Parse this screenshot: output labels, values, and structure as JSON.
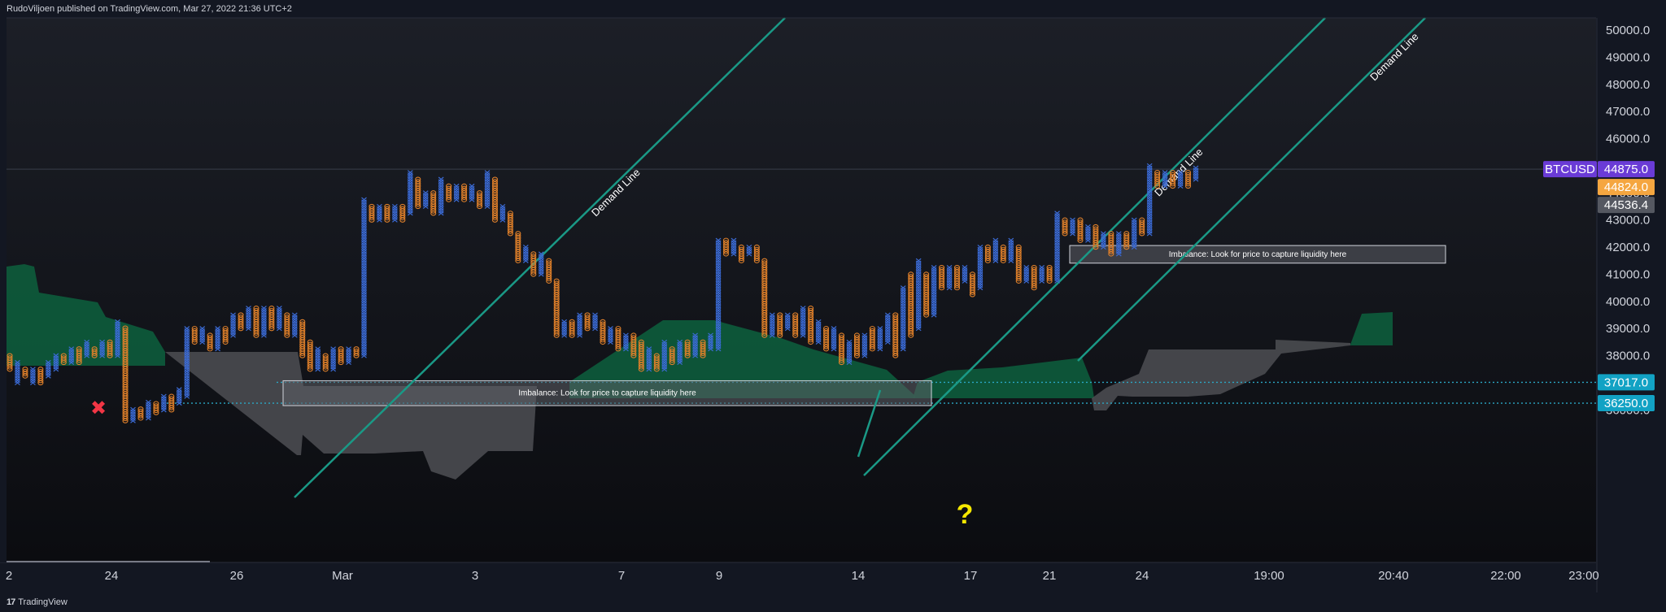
{
  "header": {
    "published": "RudoViljoen published on TradingView.com, Mar 27, 2022 21:36 UTC+2"
  },
  "footer": {
    "brand": "TradingView",
    "logo": "17"
  },
  "colors": {
    "background": "#131722",
    "x_color": "#3b6bd6",
    "o_color": "#e0802a",
    "cloud_green": "#0d5c3c",
    "cloud_gray": "#4a4b50",
    "demand_line": "#1a9986",
    "dotted": "#2ba6c4",
    "symbol_badge": "#6a3bd6",
    "last_badge": "#f5a640",
    "prev_badge": "#555861",
    "level_badge": "#12a2c4",
    "cross": "#f23645",
    "question": "#f5e800"
  },
  "chart_data": {
    "type": "point-and-figure",
    "symbol": "BTCUSD",
    "ylim": [
      35600,
      50500
    ],
    "y_ticks": [
      "50000.0",
      "49000.0",
      "48000.0",
      "47000.0",
      "46000.0",
      "45000.0",
      "44000.0",
      "43000.0",
      "42000.0",
      "41000.0",
      "40000.0",
      "39000.0",
      "38000.0",
      "37000.0",
      "36000.0"
    ],
    "x_ticks": [
      "2",
      "24",
      "26",
      "Mar",
      "3",
      "7",
      "9",
      "14",
      "17",
      "21",
      "24",
      "19:00",
      "20:40",
      "22:00",
      "23:00"
    ],
    "price_badges": [
      {
        "label": "BTCUSD",
        "role": "symbol",
        "value": 44875.0
      },
      {
        "label": "44875.0",
        "role": "symbol-value",
        "value": 44875.0
      },
      {
        "label": "44824.0",
        "role": "last",
        "value": 44824.0
      },
      {
        "label": "44536.4",
        "role": "prev",
        "value": 44536.4
      },
      {
        "label": "37017.0",
        "role": "level",
        "value": 37017.0
      },
      {
        "label": "36250.0",
        "role": "level",
        "value": 36250.0
      }
    ],
    "horizontal_levels": [
      37017.0,
      36250.0,
      44875.0
    ],
    "demand_lines": [
      {
        "label": "Demand Line"
      },
      {
        "label": "Demand Line"
      },
      {
        "label": "Demand Line"
      },
      {
        "label": ""
      }
    ],
    "annotations": [
      {
        "label": "Imbalance: Look for price to capture liquidity here",
        "low": 36250,
        "high": 37017
      },
      {
        "label": "Imbalance: Look for price to capture liquidity here",
        "low": 41500,
        "high": 42000
      }
    ],
    "markers": {
      "cross": "✖",
      "question": "?"
    },
    "columns": [
      {
        "t": "O",
        "lo": 37500,
        "hi": 38000
      },
      {
        "t": "X",
        "lo": 37000,
        "hi": 37750
      },
      {
        "t": "O",
        "lo": 37250,
        "hi": 37500
      },
      {
        "t": "X",
        "lo": 37000,
        "hi": 37500
      },
      {
        "t": "O",
        "lo": 37000,
        "hi": 37500
      },
      {
        "t": "X",
        "lo": 37250,
        "hi": 37750
      },
      {
        "t": "X",
        "lo": 37500,
        "hi": 38000
      },
      {
        "t": "O",
        "lo": 37750,
        "hi": 38000
      },
      {
        "t": "X",
        "lo": 37750,
        "hi": 38250
      },
      {
        "t": "O",
        "lo": 37750,
        "hi": 38250
      },
      {
        "t": "X",
        "lo": 38000,
        "hi": 38500
      },
      {
        "t": "O",
        "lo": 38000,
        "hi": 38250
      },
      {
        "t": "X",
        "lo": 38000,
        "hi": 38500
      },
      {
        "t": "O",
        "lo": 38000,
        "hi": 38500
      },
      {
        "t": "X",
        "lo": 38000,
        "hi": 39250
      },
      {
        "t": "O",
        "lo": 35600,
        "hi": 39000
      },
      {
        "t": "X",
        "lo": 35600,
        "hi": 36000
      },
      {
        "t": "O",
        "lo": 35700,
        "hi": 36000
      },
      {
        "t": "X",
        "lo": 35700,
        "hi": 36250
      },
      {
        "t": "O",
        "lo": 35900,
        "hi": 36250
      },
      {
        "t": "X",
        "lo": 36000,
        "hi": 36500
      },
      {
        "t": "O",
        "lo": 36000,
        "hi": 36500
      },
      {
        "t": "X",
        "lo": 36250,
        "hi": 36750
      },
      {
        "t": "X",
        "lo": 36500,
        "hi": 39000
      },
      {
        "t": "O",
        "lo": 38500,
        "hi": 39000
      },
      {
        "t": "X",
        "lo": 38500,
        "hi": 39000
      },
      {
        "t": "O",
        "lo": 38250,
        "hi": 38750
      },
      {
        "t": "X",
        "lo": 38250,
        "hi": 39000
      },
      {
        "t": "O",
        "lo": 38500,
        "hi": 39000
      },
      {
        "t": "X",
        "lo": 38750,
        "hi": 39500
      },
      {
        "t": "O",
        "lo": 39000,
        "hi": 39500
      },
      {
        "t": "X",
        "lo": 39000,
        "hi": 39750
      },
      {
        "t": "O",
        "lo": 38750,
        "hi": 39750
      },
      {
        "t": "X",
        "lo": 38750,
        "hi": 39750
      },
      {
        "t": "O",
        "lo": 39000,
        "hi": 39750
      },
      {
        "t": "X",
        "lo": 39000,
        "hi": 39750
      },
      {
        "t": "O",
        "lo": 38750,
        "hi": 39500
      },
      {
        "t": "X",
        "lo": 38750,
        "hi": 39500
      },
      {
        "t": "O",
        "lo": 38000,
        "hi": 39250
      },
      {
        "t": "O",
        "lo": 37500,
        "hi": 38500
      },
      {
        "t": "X",
        "lo": 37500,
        "hi": 38250
      },
      {
        "t": "O",
        "lo": 37500,
        "hi": 38000
      },
      {
        "t": "X",
        "lo": 37500,
        "hi": 38250
      },
      {
        "t": "O",
        "lo": 37750,
        "hi": 38250
      },
      {
        "t": "X",
        "lo": 37750,
        "hi": 38250
      },
      {
        "t": "O",
        "lo": 38000,
        "hi": 38250
      },
      {
        "t": "X",
        "lo": 38000,
        "hi": 43750
      },
      {
        "t": "O",
        "lo": 43000,
        "hi": 43500
      },
      {
        "t": "X",
        "lo": 43000,
        "hi": 43500
      },
      {
        "t": "O",
        "lo": 43000,
        "hi": 43500
      },
      {
        "t": "X",
        "lo": 43000,
        "hi": 43500
      },
      {
        "t": "O",
        "lo": 43000,
        "hi": 43500
      },
      {
        "t": "X",
        "lo": 43250,
        "hi": 44750
      },
      {
        "t": "O",
        "lo": 43500,
        "hi": 44500
      },
      {
        "t": "X",
        "lo": 43500,
        "hi": 44000
      },
      {
        "t": "O",
        "lo": 43250,
        "hi": 44000
      },
      {
        "t": "X",
        "lo": 43250,
        "hi": 44500
      },
      {
        "t": "O",
        "lo": 43750,
        "hi": 44250
      },
      {
        "t": "X",
        "lo": 43750,
        "hi": 44250
      },
      {
        "t": "O",
        "lo": 43750,
        "hi": 44250
      },
      {
        "t": "X",
        "lo": 43750,
        "hi": 44250
      },
      {
        "t": "O",
        "lo": 43500,
        "hi": 44000
      },
      {
        "t": "X",
        "lo": 43500,
        "hi": 44750
      },
      {
        "t": "O",
        "lo": 43000,
        "hi": 44500
      },
      {
        "t": "X",
        "lo": 43000,
        "hi": 43500
      },
      {
        "t": "O",
        "lo": 42500,
        "hi": 43250
      },
      {
        "t": "O",
        "lo": 41500,
        "hi": 42500
      },
      {
        "t": "X",
        "lo": 41500,
        "hi": 42000
      },
      {
        "t": "O",
        "lo": 41000,
        "hi": 41750
      },
      {
        "t": "X",
        "lo": 41000,
        "hi": 41750
      },
      {
        "t": "O",
        "lo": 40750,
        "hi": 41500
      },
      {
        "t": "O",
        "lo": 38750,
        "hi": 40750
      },
      {
        "t": "X",
        "lo": 38750,
        "hi": 39250
      },
      {
        "t": "O",
        "lo": 38750,
        "hi": 39250
      },
      {
        "t": "X",
        "lo": 38750,
        "hi": 39500
      },
      {
        "t": "O",
        "lo": 39000,
        "hi": 39500
      },
      {
        "t": "X",
        "lo": 39000,
        "hi": 39500
      },
      {
        "t": "O",
        "lo": 38500,
        "hi": 39250
      },
      {
        "t": "X",
        "lo": 38500,
        "hi": 39000
      },
      {
        "t": "O",
        "lo": 38250,
        "hi": 39000
      },
      {
        "t": "X",
        "lo": 38250,
        "hi": 38750
      },
      {
        "t": "O",
        "lo": 38000,
        "hi": 38750
      },
      {
        "t": "O",
        "lo": 37500,
        "hi": 38500
      },
      {
        "t": "X",
        "lo": 37500,
        "hi": 38250
      },
      {
        "t": "O",
        "lo": 37500,
        "hi": 38000
      },
      {
        "t": "X",
        "lo": 37500,
        "hi": 38500
      },
      {
        "t": "O",
        "lo": 37750,
        "hi": 38250
      },
      {
        "t": "X",
        "lo": 37750,
        "hi": 38500
      },
      {
        "t": "O",
        "lo": 38000,
        "hi": 38500
      },
      {
        "t": "X",
        "lo": 38000,
        "hi": 38750
      },
      {
        "t": "O",
        "lo": 38000,
        "hi": 38500
      },
      {
        "t": "X",
        "lo": 38250,
        "hi": 38750
      },
      {
        "t": "X",
        "lo": 38250,
        "hi": 42250
      },
      {
        "t": "O",
        "lo": 41750,
        "hi": 42250
      },
      {
        "t": "X",
        "lo": 41750,
        "hi": 42250
      },
      {
        "t": "O",
        "lo": 41500,
        "hi": 42000
      },
      {
        "t": "X",
        "lo": 41750,
        "hi": 42000
      },
      {
        "t": "O",
        "lo": 41500,
        "hi": 42000
      },
      {
        "t": "O",
        "lo": 38750,
        "hi": 41500
      },
      {
        "t": "X",
        "lo": 38750,
        "hi": 39500
      },
      {
        "t": "O",
        "lo": 38750,
        "hi": 39500
      },
      {
        "t": "X",
        "lo": 39000,
        "hi": 39500
      },
      {
        "t": "O",
        "lo": 38750,
        "hi": 39500
      },
      {
        "t": "X",
        "lo": 38750,
        "hi": 39750
      },
      {
        "t": "O",
        "lo": 38500,
        "hi": 39750
      },
      {
        "t": "X",
        "lo": 38500,
        "hi": 39250
      },
      {
        "t": "O",
        "lo": 38250,
        "hi": 39000
      },
      {
        "t": "X",
        "lo": 38250,
        "hi": 39000
      },
      {
        "t": "O",
        "lo": 37750,
        "hi": 38750
      },
      {
        "t": "X",
        "lo": 37750,
        "hi": 38500
      },
      {
        "t": "O",
        "lo": 38000,
        "hi": 38750
      },
      {
        "t": "X",
        "lo": 38000,
        "hi": 38750
      },
      {
        "t": "O",
        "lo": 38250,
        "hi": 39000
      },
      {
        "t": "X",
        "lo": 38250,
        "hi": 39000
      },
      {
        "t": "X",
        "lo": 38500,
        "hi": 39500
      },
      {
        "t": "O",
        "lo": 38000,
        "hi": 39500
      },
      {
        "t": "X",
        "lo": 38250,
        "hi": 40500
      },
      {
        "t": "O",
        "lo": 38750,
        "hi": 41000
      },
      {
        "t": "X",
        "lo": 39000,
        "hi": 41500
      },
      {
        "t": "O",
        "lo": 39500,
        "hi": 41000
      },
      {
        "t": "X",
        "lo": 39500,
        "hi": 41250
      },
      {
        "t": "O",
        "lo": 40500,
        "hi": 41250
      },
      {
        "t": "X",
        "lo": 40500,
        "hi": 41250
      },
      {
        "t": "O",
        "lo": 40500,
        "hi": 41250
      },
      {
        "t": "X",
        "lo": 40750,
        "hi": 41250
      },
      {
        "t": "O",
        "lo": 40250,
        "hi": 41000
      },
      {
        "t": "X",
        "lo": 40500,
        "hi": 42000
      },
      {
        "t": "O",
        "lo": 41500,
        "hi": 42000
      },
      {
        "t": "X",
        "lo": 41500,
        "hi": 42250
      },
      {
        "t": "O",
        "lo": 41500,
        "hi": 42000
      },
      {
        "t": "X",
        "lo": 41500,
        "hi": 42250
      },
      {
        "t": "O",
        "lo": 40750,
        "hi": 42000
      },
      {
        "t": "X",
        "lo": 40750,
        "hi": 41250
      },
      {
        "t": "O",
        "lo": 40500,
        "hi": 41250
      },
      {
        "t": "X",
        "lo": 40750,
        "hi": 41250
      },
      {
        "t": "O",
        "lo": 40750,
        "hi": 41250
      },
      {
        "t": "X",
        "lo": 40750,
        "hi": 43250
      },
      {
        "t": "O",
        "lo": 42500,
        "hi": 43000
      },
      {
        "t": "X",
        "lo": 42500,
        "hi": 43000
      },
      {
        "t": "O",
        "lo": 42250,
        "hi": 43000
      },
      {
        "t": "X",
        "lo": 42250,
        "hi": 42750
      },
      {
        "t": "O",
        "lo": 42000,
        "hi": 42750
      },
      {
        "t": "X",
        "lo": 42000,
        "hi": 42500
      },
      {
        "t": "O",
        "lo": 41750,
        "hi": 42500
      },
      {
        "t": "X",
        "lo": 41750,
        "hi": 42500
      },
      {
        "t": "O",
        "lo": 42000,
        "hi": 42500
      },
      {
        "t": "X",
        "lo": 42000,
        "hi": 43000
      },
      {
        "t": "O",
        "lo": 42500,
        "hi": 43000
      },
      {
        "t": "X",
        "lo": 42500,
        "hi": 45000
      },
      {
        "t": "O",
        "lo": 44250,
        "hi": 44750
      },
      {
        "t": "X",
        "lo": 44250,
        "hi": 44750
      },
      {
        "t": "O",
        "lo": 44250,
        "hi": 44750
      },
      {
        "t": "X",
        "lo": 44250,
        "hi": 44750
      },
      {
        "t": "O",
        "lo": 44250,
        "hi": 44750
      },
      {
        "t": "X",
        "lo": 44500,
        "hi": 44875
      }
    ]
  }
}
